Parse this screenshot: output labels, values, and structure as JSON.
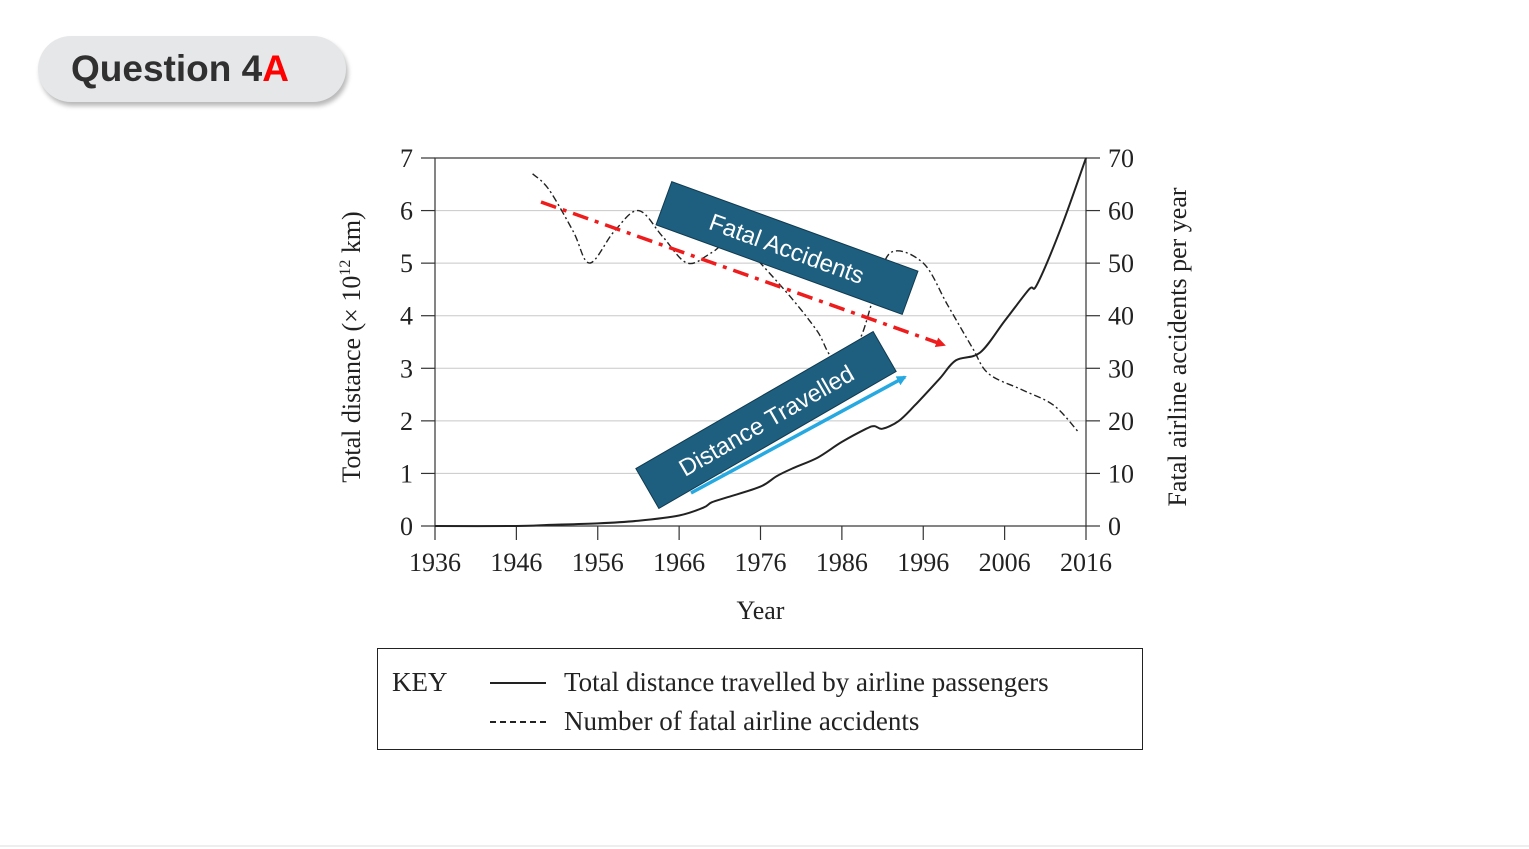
{
  "slide": {
    "title_main": "Question 4",
    "title_suffix": "A"
  },
  "chart_data": {
    "type": "line",
    "x_label": "Year",
    "y_left_label": "Total distance  (× 10",
    "y_left_label_exp": "12",
    "y_left_label_unit": " km)",
    "y_right_label": "Fatal airline accidents per year",
    "x_ticks": [
      "1936",
      "1946",
      "1956",
      "1966",
      "1976",
      "1986",
      "1996",
      "2006",
      "2016"
    ],
    "y_left_ticks": [
      "0",
      "1",
      "2",
      "3",
      "4",
      "5",
      "6",
      "7"
    ],
    "y_right_ticks": [
      "0",
      "10",
      "20",
      "30",
      "40",
      "50",
      "60",
      "70"
    ],
    "x_range": [
      1936,
      2016
    ],
    "y_left_range": [
      0,
      7
    ],
    "y_right_range": [
      0,
      70
    ],
    "series": [
      {
        "name": "Total distance travelled by airline passengers",
        "axis": "left",
        "style": "solid",
        "x": [
          1936,
          1946,
          1950,
          1956,
          1961,
          1966,
          1969,
          1970,
          1972,
          1976,
          1978,
          1980,
          1983,
          1986,
          1989,
          1990,
          1991,
          1993,
          1995,
          1998,
          2000,
          2003,
          2006,
          2009,
          2010,
          2013,
          2016
        ],
        "y": [
          0.0,
          0.0,
          0.02,
          0.05,
          0.1,
          0.2,
          0.35,
          0.45,
          0.55,
          0.75,
          0.95,
          1.1,
          1.3,
          1.6,
          1.85,
          1.9,
          1.85,
          2.0,
          2.3,
          2.8,
          3.15,
          3.3,
          3.9,
          4.5,
          4.6,
          5.7,
          7.0
        ]
      },
      {
        "name": "Number of fatal airline accidents",
        "axis": "right",
        "style": "dashdot",
        "x": [
          1948,
          1950,
          1953,
          1955,
          1958,
          1961,
          1964,
          1967,
          1970,
          1973,
          1976,
          1980,
          1983,
          1985,
          1988,
          1990,
          1992,
          1996,
          1999,
          2002,
          2004,
          2008,
          2012,
          2015
        ],
        "y": [
          67,
          64,
          56,
          50,
          56,
          60,
          55,
          50,
          52,
          55,
          50,
          43,
          37,
          32,
          35,
          44,
          52,
          50,
          42,
          34,
          29,
          26,
          23,
          18
        ]
      }
    ],
    "annotations": [
      {
        "text": "Fatal Accidents",
        "box_color": "#1e5f7f",
        "arrow_color": "#ee1c1c",
        "arrow_style": "dash-dot"
      },
      {
        "text": "Distance Travelled",
        "box_color": "#1e5f7f",
        "arrow_color": "#26a9e0",
        "arrow_style": "solid"
      }
    ],
    "legend": {
      "title": "KEY",
      "entries": [
        {
          "label": "Total distance travelled by airline passengers",
          "style": "solid"
        },
        {
          "label": "Number of fatal airline accidents",
          "style": "dashdot"
        }
      ]
    }
  }
}
